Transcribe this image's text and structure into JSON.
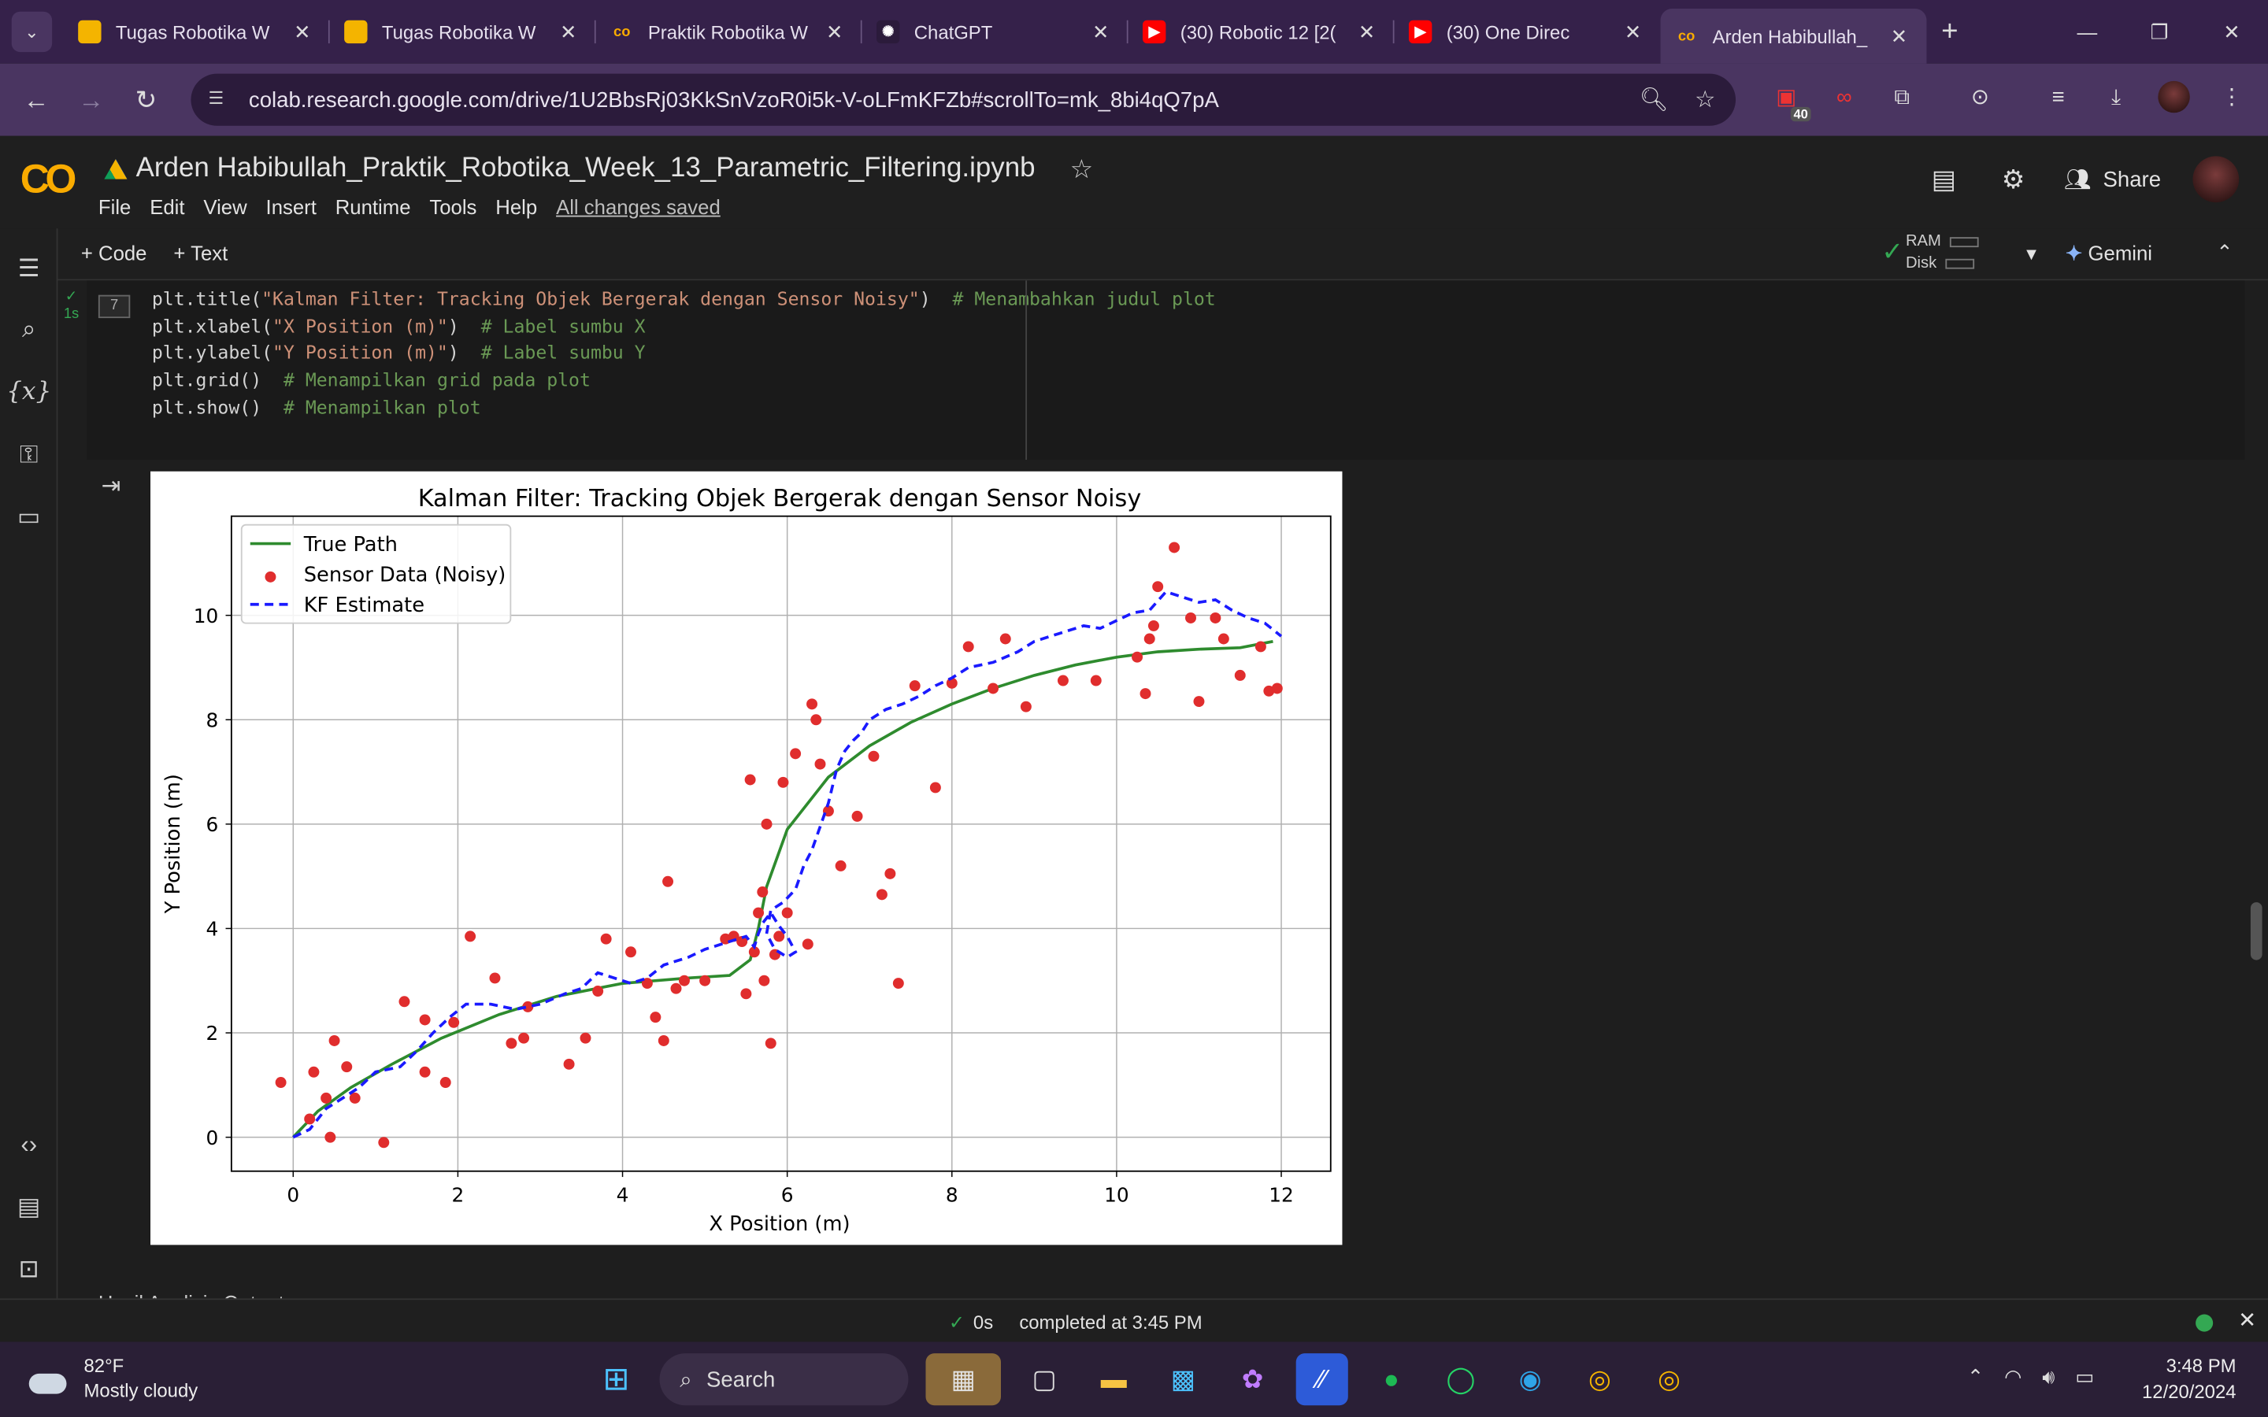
{
  "browser": {
    "tabs": [
      {
        "title": "Tugas Robotika W",
        "fav_color": "#f4b400",
        "fav_glyph": ""
      },
      {
        "title": "Tugas Robotika W",
        "fav_color": "#f4b400",
        "fav_glyph": ""
      },
      {
        "title": "Praktik Robotika W",
        "fav_color": "#f9ab00",
        "fav_glyph": "co"
      },
      {
        "title": "ChatGPT",
        "fav_color": "#2b1b3b",
        "fav_glyph": "✺"
      },
      {
        "title": "(30) Robotic 12 [2(",
        "fav_color": "#ff0000",
        "fav_glyph": "▶"
      },
      {
        "title": "(30) One Direc",
        "fav_color": "#ff0000",
        "fav_glyph": "▶"
      },
      {
        "title": "Arden Habibullah_",
        "fav_color": "#f9ab00",
        "fav_glyph": "co"
      }
    ],
    "url": "colab.research.google.com/drive/1U2BbsRj03KkSnVzoR0i5k-V-oLFmKFZb#scrollTo=mk_8bi4qQ7pA",
    "ext_badge": "40"
  },
  "colab": {
    "logo": "CO",
    "notebook_title": "Arden Habibullah_Praktik_Robotika_Week_13_Parametric_Filtering.ipynb",
    "menu": [
      "File",
      "Edit",
      "View",
      "Insert",
      "Runtime",
      "Tools",
      "Help"
    ],
    "saved_status": "All changes saved",
    "share_label": "Share",
    "add_code": "+ Code",
    "add_text": "+ Text",
    "ram_label": "RAM",
    "disk_label": "Disk",
    "gemini_label": "Gemini"
  },
  "cell": {
    "number": "7",
    "exec_time": "1s",
    "lines": [
      {
        "code": "plt.title(",
        "str": "\"Kalman Filter: Tracking Objek Bergerak dengan Sensor Noisy\"",
        "close": ")",
        "comment": "  # Menambahkan judul plot"
      },
      {
        "code": "plt.xlabel(",
        "str": "\"X Position (m)\"",
        "close": ")",
        "comment": "  # Label sumbu X"
      },
      {
        "code": "plt.ylabel(",
        "str": "\"Y Position (m)\"",
        "close": ")",
        "comment": "  # Label sumbu Y"
      },
      {
        "code": "plt.grid()",
        "str": "",
        "close": "",
        "comment": "  # Menampilkan grid pada plot"
      },
      {
        "code": "plt.show()",
        "str": "",
        "close": "",
        "comment": "  # Menampilkan plot"
      }
    ]
  },
  "next_cell_text": "Hasil Analisis Output",
  "chart_data": {
    "type": "line",
    "title": "Kalman Filter: Tracking Objek Bergerak dengan Sensor Noisy",
    "xlabel": "X Position (m)",
    "ylabel": "Y Position (m)",
    "xlim": [
      -0.75,
      12.6
    ],
    "ylim": [
      -0.65,
      11.9
    ],
    "xticks": [
      0,
      2,
      4,
      6,
      8,
      10,
      12
    ],
    "yticks": [
      0,
      2,
      4,
      6,
      8,
      10
    ],
    "grid": true,
    "legend_position": "upper-left",
    "series": [
      {
        "name": "True Path",
        "kind": "line",
        "color": "#2e8b2e",
        "dash": "solid",
        "x": [
          0,
          0.3,
          0.7,
          1.2,
          1.8,
          2.5,
          3.2,
          4.0,
          4.8,
          5.3,
          5.55,
          5.65,
          5.75,
          6.0,
          6.5,
          7.0,
          7.5,
          8.0,
          8.5,
          9.0,
          9.5,
          10.0,
          10.5,
          11.0,
          11.5,
          11.9
        ],
        "y": [
          0,
          0.5,
          0.95,
          1.4,
          1.9,
          2.35,
          2.7,
          2.95,
          3.05,
          3.1,
          3.4,
          4.0,
          4.8,
          5.9,
          6.9,
          7.5,
          7.95,
          8.3,
          8.6,
          8.85,
          9.05,
          9.2,
          9.3,
          9.35,
          9.38,
          9.5
        ]
      },
      {
        "name": "Sensor Data (Noisy)",
        "kind": "scatter",
        "color": "#e02d2d",
        "x": [
          -0.15,
          0.2,
          0.25,
          0.4,
          0.45,
          0.5,
          0.65,
          0.75,
          1.1,
          1.35,
          1.6,
          1.6,
          1.85,
          1.95,
          2.15,
          2.45,
          2.65,
          2.8,
          2.85,
          3.35,
          3.55,
          3.7,
          3.8,
          4.1,
          4.3,
          4.4,
          4.5,
          4.55,
          4.65,
          4.75,
          5.0,
          5.25,
          5.35,
          5.45,
          5.5,
          5.55,
          5.6,
          5.65,
          5.7,
          5.72,
          5.75,
          5.8,
          5.85,
          5.9,
          5.95,
          6.0,
          6.1,
          6.25,
          6.3,
          6.35,
          6.4,
          6.5,
          6.65,
          6.85,
          7.05,
          7.15,
          7.25,
          7.35,
          7.55,
          7.8,
          8.0,
          8.2,
          8.5,
          8.65,
          8.9,
          9.35,
          9.75,
          10.25,
          10.35,
          10.4,
          10.45,
          10.5,
          10.7,
          10.9,
          11.0,
          11.2,
          11.3,
          11.5,
          11.75,
          11.85,
          11.95
        ],
        "y": [
          1.05,
          0.35,
          1.25,
          0.75,
          0.0,
          1.85,
          1.35,
          0.75,
          -0.1,
          2.6,
          2.25,
          1.25,
          1.05,
          2.2,
          3.85,
          3.05,
          1.8,
          1.9,
          2.5,
          1.4,
          1.9,
          2.8,
          3.8,
          3.55,
          2.95,
          2.3,
          1.85,
          4.9,
          2.85,
          3.0,
          3.0,
          3.8,
          3.85,
          3.75,
          2.75,
          6.85,
          3.55,
          4.3,
          4.7,
          3.0,
          6.0,
          1.8,
          3.5,
          3.85,
          6.8,
          4.3,
          7.35,
          3.7,
          8.3,
          8.0,
          7.15,
          6.25,
          5.2,
          6.15,
          7.3,
          4.65,
          5.05,
          2.95,
          8.65,
          6.7,
          8.7,
          9.4,
          8.6,
          9.55,
          8.25,
          8.75,
          8.75,
          9.2,
          8.5,
          9.55,
          9.8,
          10.55,
          11.3,
          9.95,
          8.35,
          9.95,
          9.55,
          8.85,
          9.4,
          8.55,
          8.6
        ]
      },
      {
        "name": "KF Estimate",
        "kind": "line",
        "color": "#1a1aff",
        "dash": "6,4",
        "x": [
          0,
          0.2,
          0.4,
          0.6,
          0.8,
          1.0,
          1.3,
          1.5,
          1.7,
          1.9,
          2.1,
          2.4,
          2.7,
          3.0,
          3.3,
          3.5,
          3.7,
          3.9,
          4.1,
          4.3,
          4.5,
          4.8,
          5.0,
          5.2,
          5.4,
          5.5,
          5.6,
          5.65,
          5.7,
          5.8,
          5.9,
          6.0,
          6.1,
          6.0,
          5.85,
          5.75,
          5.8,
          5.95,
          6.1,
          6.2,
          6.3,
          6.4,
          6.5,
          6.6,
          6.7,
          6.8,
          6.9,
          7.0,
          7.2,
          7.4,
          7.6,
          7.8,
          8.0,
          8.2,
          8.5,
          8.8,
          9.0,
          9.3,
          9.6,
          9.8,
          10.0,
          10.2,
          10.4,
          10.6,
          10.8,
          11.0,
          11.2,
          11.4,
          11.6,
          11.8,
          12.0
        ],
        "y": [
          0,
          0.15,
          0.55,
          0.75,
          0.95,
          1.25,
          1.35,
          1.65,
          2.0,
          2.3,
          2.55,
          2.55,
          2.45,
          2.55,
          2.75,
          2.85,
          3.15,
          3.05,
          2.95,
          3.05,
          3.3,
          3.45,
          3.6,
          3.7,
          3.8,
          3.85,
          3.65,
          3.9,
          4.1,
          4.3,
          4.05,
          3.85,
          3.55,
          3.45,
          3.6,
          3.9,
          4.35,
          4.5,
          4.75,
          5.2,
          5.5,
          5.95,
          6.4,
          7.05,
          7.4,
          7.6,
          7.75,
          8.0,
          8.2,
          8.3,
          8.45,
          8.65,
          8.8,
          9.0,
          9.1,
          9.3,
          9.5,
          9.65,
          9.8,
          9.75,
          9.9,
          10.05,
          10.1,
          10.45,
          10.35,
          10.25,
          10.3,
          10.1,
          9.95,
          9.85,
          9.6
        ]
      }
    ]
  },
  "status": {
    "elapsed": "0s",
    "message": "completed at 3:45 PM"
  },
  "taskbar": {
    "temp": "82°F",
    "weather": "Mostly cloudy",
    "search_label": "Search",
    "time": "3:48 PM",
    "date": "12/20/2024"
  }
}
